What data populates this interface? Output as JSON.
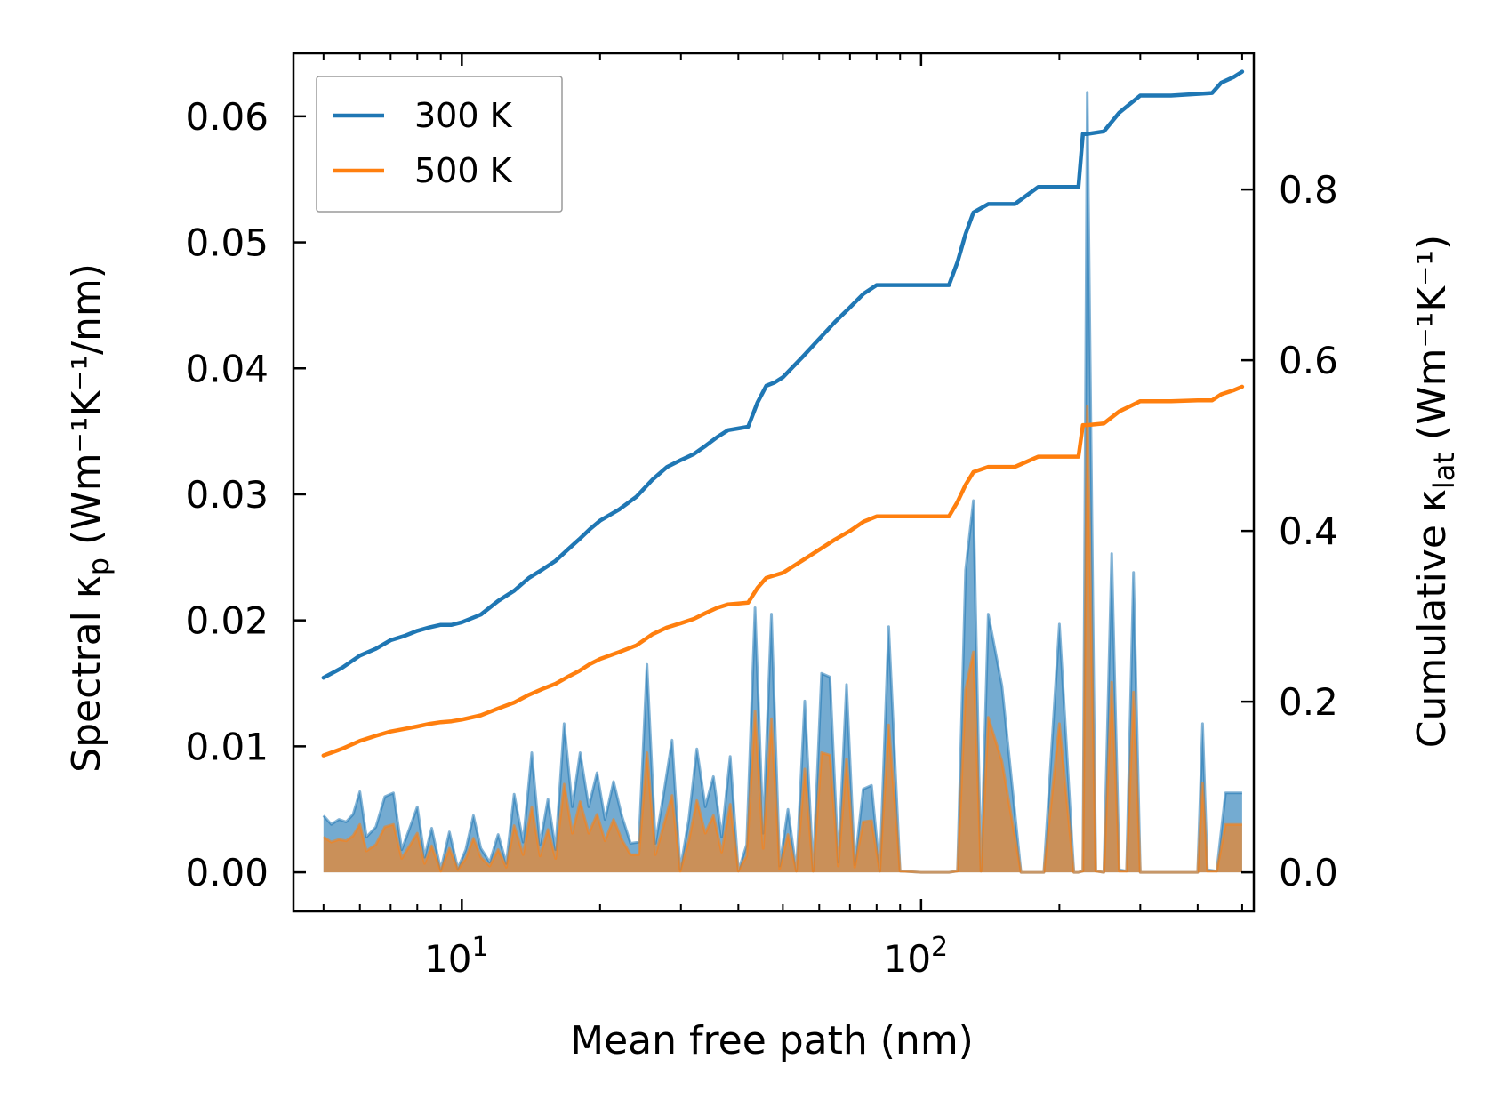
{
  "chart_data": {
    "type": "line",
    "xscale": "log",
    "xlabel": "Mean free path (nm)",
    "ylabel_left": {
      "pre": "Spectral κ",
      "sub": "p",
      "post": " (Wm⁻¹K⁻¹/nm)"
    },
    "ylabel_right": {
      "pre": "Cumulative κ",
      "sub": "lat",
      "post": " (Wm⁻¹K⁻¹)"
    },
    "xlim": [
      4.3,
      530
    ],
    "ylim_left": [
      -0.0031,
      0.065
    ],
    "ylim_right": [
      -0.0457,
      0.9595
    ],
    "x_ticks": [
      {
        "value": 10,
        "base": "10",
        "exp": "1"
      },
      {
        "value": 100,
        "base": "10",
        "exp": "2"
      }
    ],
    "y_left_ticks": [
      "0.00",
      "0.01",
      "0.02",
      "0.03",
      "0.04",
      "0.05",
      "0.06"
    ],
    "y_right_ticks": [
      "0.0",
      "0.2",
      "0.4",
      "0.6",
      "0.8"
    ],
    "legend": {
      "position": "top-left",
      "entries": [
        "300 K",
        "500 K"
      ]
    },
    "colors": {
      "300 K": "#1f77b4",
      "500 K": "#ff7f0e"
    },
    "cumulative_series": [
      {
        "name": "300 K",
        "x": [
          5,
          5.5,
          6,
          6.5,
          7,
          7.5,
          8,
          8.5,
          9,
          9.5,
          10,
          11,
          12,
          13,
          14,
          15,
          16,
          17,
          18,
          19,
          20,
          22,
          24,
          26,
          28,
          30,
          32,
          34,
          36,
          38,
          40,
          42,
          44,
          46,
          48,
          50,
          55,
          60,
          65,
          70,
          75,
          80,
          90,
          100,
          115,
          120,
          125,
          130,
          140,
          160,
          180,
          200,
          220,
          225,
          230,
          250,
          270,
          300,
          350,
          400,
          430,
          450,
          480,
          500
        ],
        "y": [
          0.228,
          0.24,
          0.254,
          0.262,
          0.272,
          0.277,
          0.283,
          0.287,
          0.29,
          0.29,
          0.293,
          0.302,
          0.318,
          0.33,
          0.345,
          0.355,
          0.365,
          0.378,
          0.39,
          0.402,
          0.412,
          0.425,
          0.44,
          0.46,
          0.475,
          0.483,
          0.49,
          0.5,
          0.51,
          0.518,
          0.52,
          0.522,
          0.55,
          0.57,
          0.574,
          0.58,
          0.603,
          0.625,
          0.645,
          0.662,
          0.678,
          0.688,
          0.688,
          0.688,
          0.688,
          0.715,
          0.748,
          0.773,
          0.783,
          0.783,
          0.803,
          0.803,
          0.803,
          0.865,
          0.865,
          0.868,
          0.89,
          0.91,
          0.91,
          0.912,
          0.913,
          0.925,
          0.932,
          0.938
        ]
      },
      {
        "name": "500 K",
        "x": [
          5,
          5.5,
          6,
          6.5,
          7,
          7.5,
          8,
          8.5,
          9,
          9.5,
          10,
          11,
          12,
          13,
          14,
          15,
          16,
          17,
          18,
          19,
          20,
          22,
          24,
          26,
          28,
          30,
          32,
          34,
          36,
          38,
          40,
          42,
          44,
          46,
          48,
          50,
          55,
          60,
          65,
          70,
          75,
          80,
          90,
          100,
          115,
          120,
          125,
          130,
          140,
          160,
          180,
          200,
          220,
          225,
          230,
          250,
          270,
          300,
          350,
          400,
          430,
          450,
          480,
          500
        ],
        "y": [
          0.137,
          0.145,
          0.154,
          0.16,
          0.165,
          0.168,
          0.171,
          0.174,
          0.176,
          0.177,
          0.179,
          0.184,
          0.192,
          0.199,
          0.208,
          0.215,
          0.221,
          0.229,
          0.236,
          0.244,
          0.25,
          0.258,
          0.266,
          0.279,
          0.287,
          0.292,
          0.297,
          0.304,
          0.31,
          0.314,
          0.315,
          0.316,
          0.333,
          0.345,
          0.348,
          0.351,
          0.365,
          0.378,
          0.39,
          0.4,
          0.411,
          0.417,
          0.417,
          0.417,
          0.417,
          0.434,
          0.454,
          0.469,
          0.475,
          0.475,
          0.487,
          0.487,
          0.487,
          0.524,
          0.524,
          0.526,
          0.54,
          0.552,
          0.552,
          0.553,
          0.553,
          0.56,
          0.565,
          0.569
        ]
      }
    ],
    "spectral_series": [
      {
        "name": "300 K",
        "x": [
          5,
          5.2,
          5.4,
          5.6,
          5.8,
          6,
          6.2,
          6.5,
          6.8,
          7.1,
          7.4,
          7.7,
          8,
          8.3,
          8.6,
          9,
          9.4,
          9.8,
          10.2,
          10.6,
          11,
          11.5,
          12,
          12.5,
          13,
          13.6,
          14.2,
          14.8,
          15.4,
          16,
          16.7,
          17.4,
          18.1,
          18.9,
          19.7,
          20.5,
          21.4,
          22.3,
          23.3,
          24.3,
          25.3,
          26.4,
          27.5,
          28.7,
          29.9,
          31.2,
          32.5,
          33.9,
          35.3,
          36.8,
          38.4,
          40,
          41.7,
          43.5,
          45.3,
          47.2,
          49.2,
          51.3,
          53.5,
          55.8,
          58.2,
          60.7,
          63.3,
          66,
          68.8,
          71.7,
          74.8,
          78,
          81.3,
          85,
          90,
          100,
          110,
          115,
          120,
          125,
          130,
          135,
          140,
          150,
          165,
          175,
          185,
          200,
          215,
          220,
          225,
          230,
          240,
          250,
          260,
          270,
          280,
          290,
          300,
          320,
          360,
          400,
          410,
          420,
          440,
          460,
          480,
          500
        ],
        "y": [
          0.0045,
          0.0038,
          0.0042,
          0.004,
          0.0046,
          0.0064,
          0.0028,
          0.0036,
          0.006,
          0.0063,
          0.0018,
          0.0035,
          0.0052,
          0.0012,
          0.0035,
          0.0002,
          0.0032,
          0.0003,
          0.0018,
          0.0045,
          0.0019,
          0.0008,
          0.003,
          0.0007,
          0.0062,
          0.0024,
          0.0095,
          0.0022,
          0.0058,
          0.0018,
          0.0118,
          0.0052,
          0.0095,
          0.0052,
          0.0079,
          0.0042,
          0.0072,
          0.0045,
          0.0023,
          0.0024,
          0.0165,
          0.0023,
          0.0062,
          0.0105,
          0.0002,
          0.0042,
          0.0098,
          0.0052,
          0.0076,
          0.0028,
          0.0092,
          0.0001,
          0.0022,
          0.021,
          0.0031,
          0.0205,
          0.0005,
          0.005,
          0.0001,
          0.0136,
          0.0001,
          0.0158,
          0.0155,
          0.0008,
          0.0149,
          0.0006,
          0.0066,
          0.0069,
          0.0001,
          0.0195,
          0.0001,
          0.0,
          0.0,
          0.0,
          0.0001,
          0.024,
          0.0295,
          0.0001,
          0.0205,
          0.0148,
          0.0,
          0.0,
          0.0,
          0.0197,
          0.0,
          0.0,
          0.0001,
          0.0619,
          0.0001,
          0.0,
          0.0253,
          0.0002,
          0.0001,
          0.0238,
          0.0,
          0.0,
          0.0,
          0.0,
          0.0118,
          0.0002,
          0.0001,
          0.0063,
          0.0063,
          0.0063
        ]
      },
      {
        "name": "500 K",
        "x": [
          5,
          5.2,
          5.4,
          5.6,
          5.8,
          6,
          6.2,
          6.5,
          6.8,
          7.1,
          7.4,
          7.7,
          8,
          8.3,
          8.6,
          9,
          9.4,
          9.8,
          10.2,
          10.6,
          11,
          11.5,
          12,
          12.5,
          13,
          13.6,
          14.2,
          14.8,
          15.4,
          16,
          16.7,
          17.4,
          18.1,
          18.9,
          19.7,
          20.5,
          21.4,
          22.3,
          23.3,
          24.3,
          25.3,
          26.4,
          27.5,
          28.7,
          29.9,
          31.2,
          32.5,
          33.9,
          35.3,
          36.8,
          38.4,
          40,
          41.7,
          43.5,
          45.3,
          47.2,
          49.2,
          51.3,
          53.5,
          55.8,
          58.2,
          60.7,
          63.3,
          66,
          68.8,
          71.7,
          74.8,
          78,
          81.3,
          85,
          90,
          100,
          110,
          115,
          120,
          125,
          130,
          135,
          140,
          150,
          165,
          175,
          185,
          200,
          215,
          220,
          225,
          230,
          240,
          250,
          260,
          270,
          280,
          290,
          300,
          320,
          360,
          400,
          410,
          420,
          440,
          460,
          480,
          500
        ],
        "y": [
          0.0028,
          0.0024,
          0.0026,
          0.0025,
          0.0029,
          0.0038,
          0.0017,
          0.0022,
          0.0036,
          0.0038,
          0.0011,
          0.0021,
          0.0031,
          0.0007,
          0.0021,
          0.0001,
          0.0019,
          0.0002,
          0.0011,
          0.0027,
          0.0012,
          0.0005,
          0.0018,
          0.0004,
          0.0037,
          0.0014,
          0.0052,
          0.0013,
          0.0034,
          0.0011,
          0.007,
          0.0031,
          0.0056,
          0.0031,
          0.0046,
          0.0025,
          0.0042,
          0.0026,
          0.0014,
          0.0014,
          0.0095,
          0.0014,
          0.0037,
          0.0061,
          0.0001,
          0.0025,
          0.0057,
          0.0031,
          0.0045,
          0.0016,
          0.0054,
          0.0001,
          0.0013,
          0.0128,
          0.0019,
          0.0122,
          0.0003,
          0.003,
          0.0001,
          0.0082,
          0.0001,
          0.0095,
          0.0093,
          0.0005,
          0.009,
          0.0004,
          0.004,
          0.0041,
          0.0001,
          0.0117,
          0.0001,
          0.0,
          0.0,
          0.0,
          0.0001,
          0.0145,
          0.0175,
          0.0001,
          0.0123,
          0.0088,
          0.0,
          0.0,
          0.0,
          0.0118,
          0.0,
          0.0,
          0.0001,
          0.037,
          0.0001,
          0.0,
          0.0151,
          0.0001,
          0.0001,
          0.0143,
          0.0,
          0.0,
          0.0,
          0.0,
          0.0071,
          0.0001,
          0.0001,
          0.0038,
          0.0038,
          0.0038
        ]
      }
    ]
  }
}
